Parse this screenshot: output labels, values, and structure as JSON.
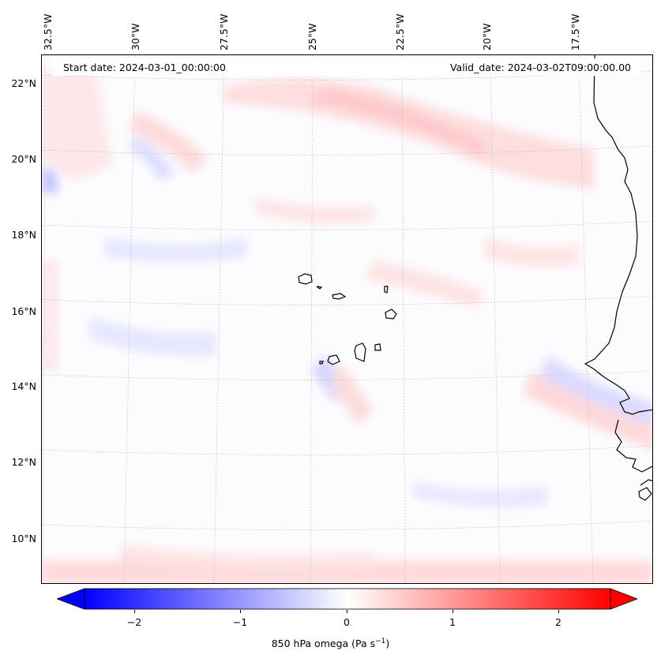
{
  "map": {
    "start_date": "Start date: 2024-03-01_00:00:00",
    "valid_date": "Valid_date: 2024-03-02T09:00:00.00",
    "lon_labels": [
      "32.5°W",
      "30°W",
      "27.5°W",
      "25°W",
      "22.5°W",
      "20°W",
      "17.5°W"
    ],
    "lat_labels": [
      "22°N",
      "20°N",
      "18°N",
      "16°N",
      "14°N",
      "12°N",
      "10°N"
    ],
    "features": [
      "Cape Verde islands",
      "West African coastline"
    ]
  },
  "colorbar": {
    "label_text": "850 hPa omega (Pa s",
    "label_sup": "−1",
    "label_close": ")",
    "ticks": [
      "−2",
      "−1",
      "0",
      "1",
      "2"
    ],
    "tick_values": [
      -2,
      -1,
      0,
      1,
      2
    ],
    "range": [
      -2.6,
      2.6
    ],
    "extend": "both",
    "cmap": "bwr",
    "colors": {
      "negative": "#0000ff",
      "zero": "#ffffff",
      "positive": "#ff0000"
    }
  }
}
